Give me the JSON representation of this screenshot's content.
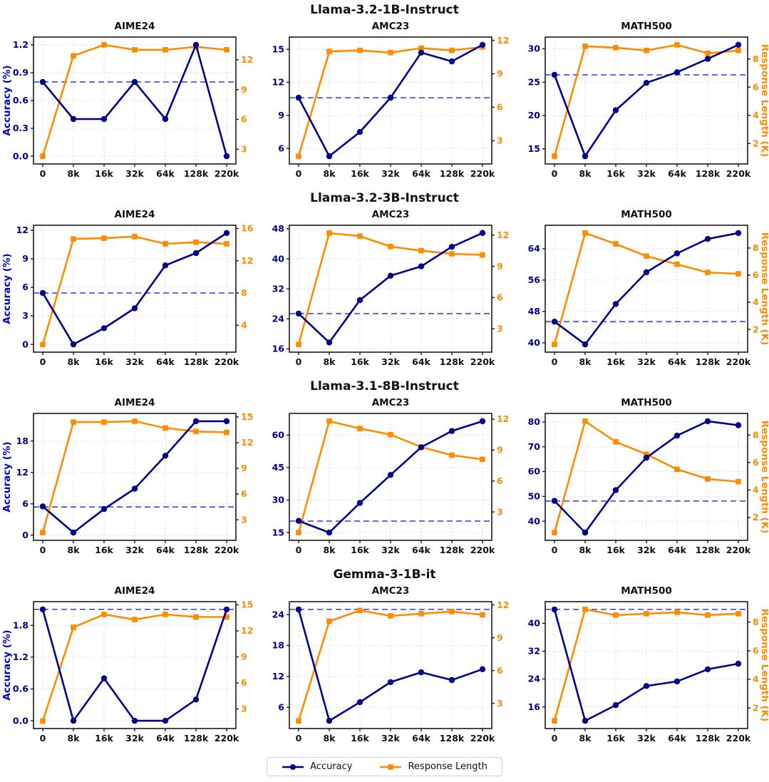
{
  "figure": {
    "x_labels": [
      "0",
      "8k",
      "16k",
      "32k",
      "64k",
      "128k",
      "220k"
    ],
    "left_axis_label": "Accuracy (%)",
    "right_axis_label": "Response Length (K)",
    "legend": [
      {
        "label": "Accuracy",
        "marker": "circle"
      },
      {
        "label": "Response Length",
        "marker": "square"
      }
    ],
    "colors": {
      "accuracy": "#00008b",
      "accuracy_label": "#0000cd",
      "response": "#ff8c00",
      "baseline": "#5055e8",
      "grid": "#dcdcdc",
      "frame": "#1a1a1a",
      "text": "#111111"
    },
    "row_titles": [
      "Llama-3.2-1B-Instruct",
      "Llama-3.2-3B-Instruct",
      "Llama-3.1-8B-Instruct",
      "Gemma-3-1B-it"
    ]
  },
  "chart_data": [
    {
      "type": "line",
      "model": "Llama-3.2-1B-Instruct",
      "benchmark": "AIME24",
      "x": [
        "0",
        "8k",
        "16k",
        "32k",
        "64k",
        "128k",
        "220k"
      ],
      "accuracy": [
        0.8,
        0.4,
        0.4,
        0.8,
        0.4,
        1.2,
        0.0
      ],
      "response_length_k": [
        2.3,
        12.4,
        13.5,
        13.0,
        13.0,
        13.3,
        13.0
      ],
      "baseline_accuracy": 0.8,
      "left_ticks": [
        0.0,
        0.3,
        0.6,
        0.9,
        1.2
      ],
      "right_ticks": [
        3,
        6,
        9,
        12
      ]
    },
    {
      "type": "line",
      "model": "Llama-3.2-1B-Instruct",
      "benchmark": "AMC23",
      "x": [
        "0",
        "8k",
        "16k",
        "32k",
        "64k",
        "128k",
        "220k"
      ],
      "accuracy": [
        10.6,
        5.3,
        7.5,
        10.6,
        14.7,
        13.9,
        15.4
      ],
      "response_length_k": [
        1.6,
        11.0,
        11.1,
        10.9,
        11.3,
        11.1,
        11.4
      ],
      "baseline_accuracy": 10.6,
      "left_ticks": [
        6,
        9,
        12,
        15
      ],
      "right_ticks": [
        3,
        6,
        9,
        12
      ]
    },
    {
      "type": "line",
      "model": "Llama-3.2-1B-Instruct",
      "benchmark": "MATH500",
      "x": [
        "0",
        "8k",
        "16k",
        "32k",
        "64k",
        "128k",
        "220k"
      ],
      "accuracy": [
        26.1,
        13.9,
        20.8,
        24.9,
        26.5,
        28.5,
        30.6
      ],
      "response_length_k": [
        1.1,
        8.9,
        8.8,
        8.6,
        9.0,
        8.4,
        8.6
      ],
      "baseline_accuracy": 26.1,
      "left_ticks": [
        15,
        20,
        25,
        30
      ],
      "right_ticks": [
        2,
        4,
        6,
        8
      ]
    },
    {
      "type": "line",
      "model": "Llama-3.2-3B-Instruct",
      "benchmark": "AIME24",
      "x": [
        "0",
        "8k",
        "16k",
        "32k",
        "64k",
        "128k",
        "220k"
      ],
      "accuracy": [
        5.4,
        0.0,
        1.7,
        3.8,
        8.3,
        9.6,
        11.7
      ],
      "response_length_k": [
        1.6,
        14.7,
        14.8,
        15.0,
        14.1,
        14.3,
        14.1
      ],
      "baseline_accuracy": 5.4,
      "left_ticks": [
        0,
        3,
        6,
        9,
        12
      ],
      "right_ticks": [
        4,
        8,
        12,
        16
      ]
    },
    {
      "type": "line",
      "model": "Llama-3.2-3B-Instruct",
      "benchmark": "AMC23",
      "x": [
        "0",
        "8k",
        "16k",
        "32k",
        "64k",
        "128k",
        "220k"
      ],
      "accuracy": [
        25.4,
        17.7,
        29.0,
        35.5,
        38.0,
        43.2,
        46.9
      ],
      "response_length_k": [
        1.5,
        12.2,
        11.9,
        10.9,
        10.5,
        10.2,
        10.1
      ],
      "baseline_accuracy": 25.4,
      "left_ticks": [
        16,
        24,
        32,
        40,
        48
      ],
      "right_ticks": [
        3,
        6,
        9,
        12
      ]
    },
    {
      "type": "line",
      "model": "Llama-3.2-3B-Instruct",
      "benchmark": "MATH500",
      "x": [
        "0",
        "8k",
        "16k",
        "32k",
        "64k",
        "128k",
        "220k"
      ],
      "accuracy": [
        45.4,
        39.6,
        49.9,
        58.0,
        62.8,
        66.5,
        68.0
      ],
      "response_length_k": [
        0.9,
        9.1,
        8.3,
        7.4,
        6.8,
        6.2,
        6.1
      ],
      "baseline_accuracy": 45.4,
      "left_ticks": [
        40,
        48,
        56,
        64
      ],
      "right_ticks": [
        2,
        4,
        6,
        8
      ]
    },
    {
      "type": "line",
      "model": "Llama-3.1-8B-Instruct",
      "benchmark": "AIME24",
      "x": [
        "0",
        "8k",
        "16k",
        "32k",
        "64k",
        "128k",
        "220k"
      ],
      "accuracy": [
        5.5,
        0.5,
        5.0,
        8.9,
        15.2,
        21.8,
        21.8
      ],
      "response_length_k": [
        1.5,
        14.4,
        14.4,
        14.5,
        13.7,
        13.3,
        13.2
      ],
      "baseline_accuracy": 5.4,
      "left_ticks": [
        0,
        6,
        12,
        18
      ],
      "right_ticks": [
        3,
        6,
        9,
        12,
        15
      ]
    },
    {
      "type": "line",
      "model": "Llama-3.1-8B-Instruct",
      "benchmark": "AMC23",
      "x": [
        "0",
        "8k",
        "16k",
        "32k",
        "64k",
        "128k",
        "220k"
      ],
      "accuracy": [
        20.4,
        15.0,
        28.7,
        41.6,
        54.4,
        61.9,
        66.4
      ],
      "response_length_k": [
        1.0,
        11.8,
        11.1,
        10.5,
        9.3,
        8.5,
        8.1
      ],
      "baseline_accuracy": 20.3,
      "left_ticks": [
        15,
        30,
        45,
        60
      ],
      "right_ticks": [
        3,
        6,
        9,
        12
      ]
    },
    {
      "type": "line",
      "model": "Llama-3.1-8B-Instruct",
      "benchmark": "MATH500",
      "x": [
        "0",
        "8k",
        "16k",
        "32k",
        "64k",
        "128k",
        "220k"
      ],
      "accuracy": [
        48.2,
        35.4,
        52.5,
        65.6,
        74.5,
        80.3,
        78.7
      ],
      "response_length_k": [
        0.9,
        9.0,
        7.5,
        6.6,
        5.5,
        4.8,
        4.6
      ],
      "baseline_accuracy": 48.1,
      "left_ticks": [
        40,
        50,
        60,
        70,
        80
      ],
      "right_ticks": [
        2,
        4,
        6,
        8
      ]
    },
    {
      "type": "line",
      "model": "Gemma-3-1B-it",
      "benchmark": "AIME24",
      "x": [
        "0",
        "8k",
        "16k",
        "32k",
        "64k",
        "128k",
        "220k"
      ],
      "accuracy": [
        2.1,
        0.0,
        0.8,
        0.0,
        0.0,
        0.4,
        2.1
      ],
      "response_length_k": [
        1.6,
        12.4,
        13.9,
        13.3,
        13.9,
        13.6,
        13.6
      ],
      "baseline_accuracy": 2.1,
      "left_ticks": [
        0.0,
        0.6,
        1.2,
        1.8
      ],
      "right_ticks": [
        3,
        6,
        9,
        12,
        15
      ]
    },
    {
      "type": "line",
      "model": "Gemma-3-1B-it",
      "benchmark": "AMC23",
      "x": [
        "0",
        "8k",
        "16k",
        "32k",
        "64k",
        "128k",
        "220k"
      ],
      "accuracy": [
        25.0,
        3.4,
        7.0,
        10.9,
        12.8,
        11.3,
        13.4
      ],
      "response_length_k": [
        1.4,
        10.5,
        11.5,
        11.0,
        11.2,
        11.4,
        11.1
      ],
      "baseline_accuracy": 25.0,
      "left_ticks": [
        6,
        12,
        18,
        24
      ],
      "right_ticks": [
        3,
        6,
        9,
        12
      ]
    },
    {
      "type": "line",
      "model": "Gemma-3-1B-it",
      "benchmark": "MATH500",
      "x": [
        "0",
        "8k",
        "16k",
        "32k",
        "64k",
        "128k",
        "220k"
      ],
      "accuracy": [
        44.0,
        12.0,
        16.5,
        22.0,
        23.3,
        26.8,
        28.4
      ],
      "response_length_k": [
        1.1,
        8.9,
        8.5,
        8.6,
        8.7,
        8.5,
        8.6
      ],
      "baseline_accuracy": 44.0,
      "left_ticks": [
        16,
        24,
        32,
        40
      ],
      "right_ticks": [
        2,
        4,
        6,
        8
      ]
    }
  ]
}
